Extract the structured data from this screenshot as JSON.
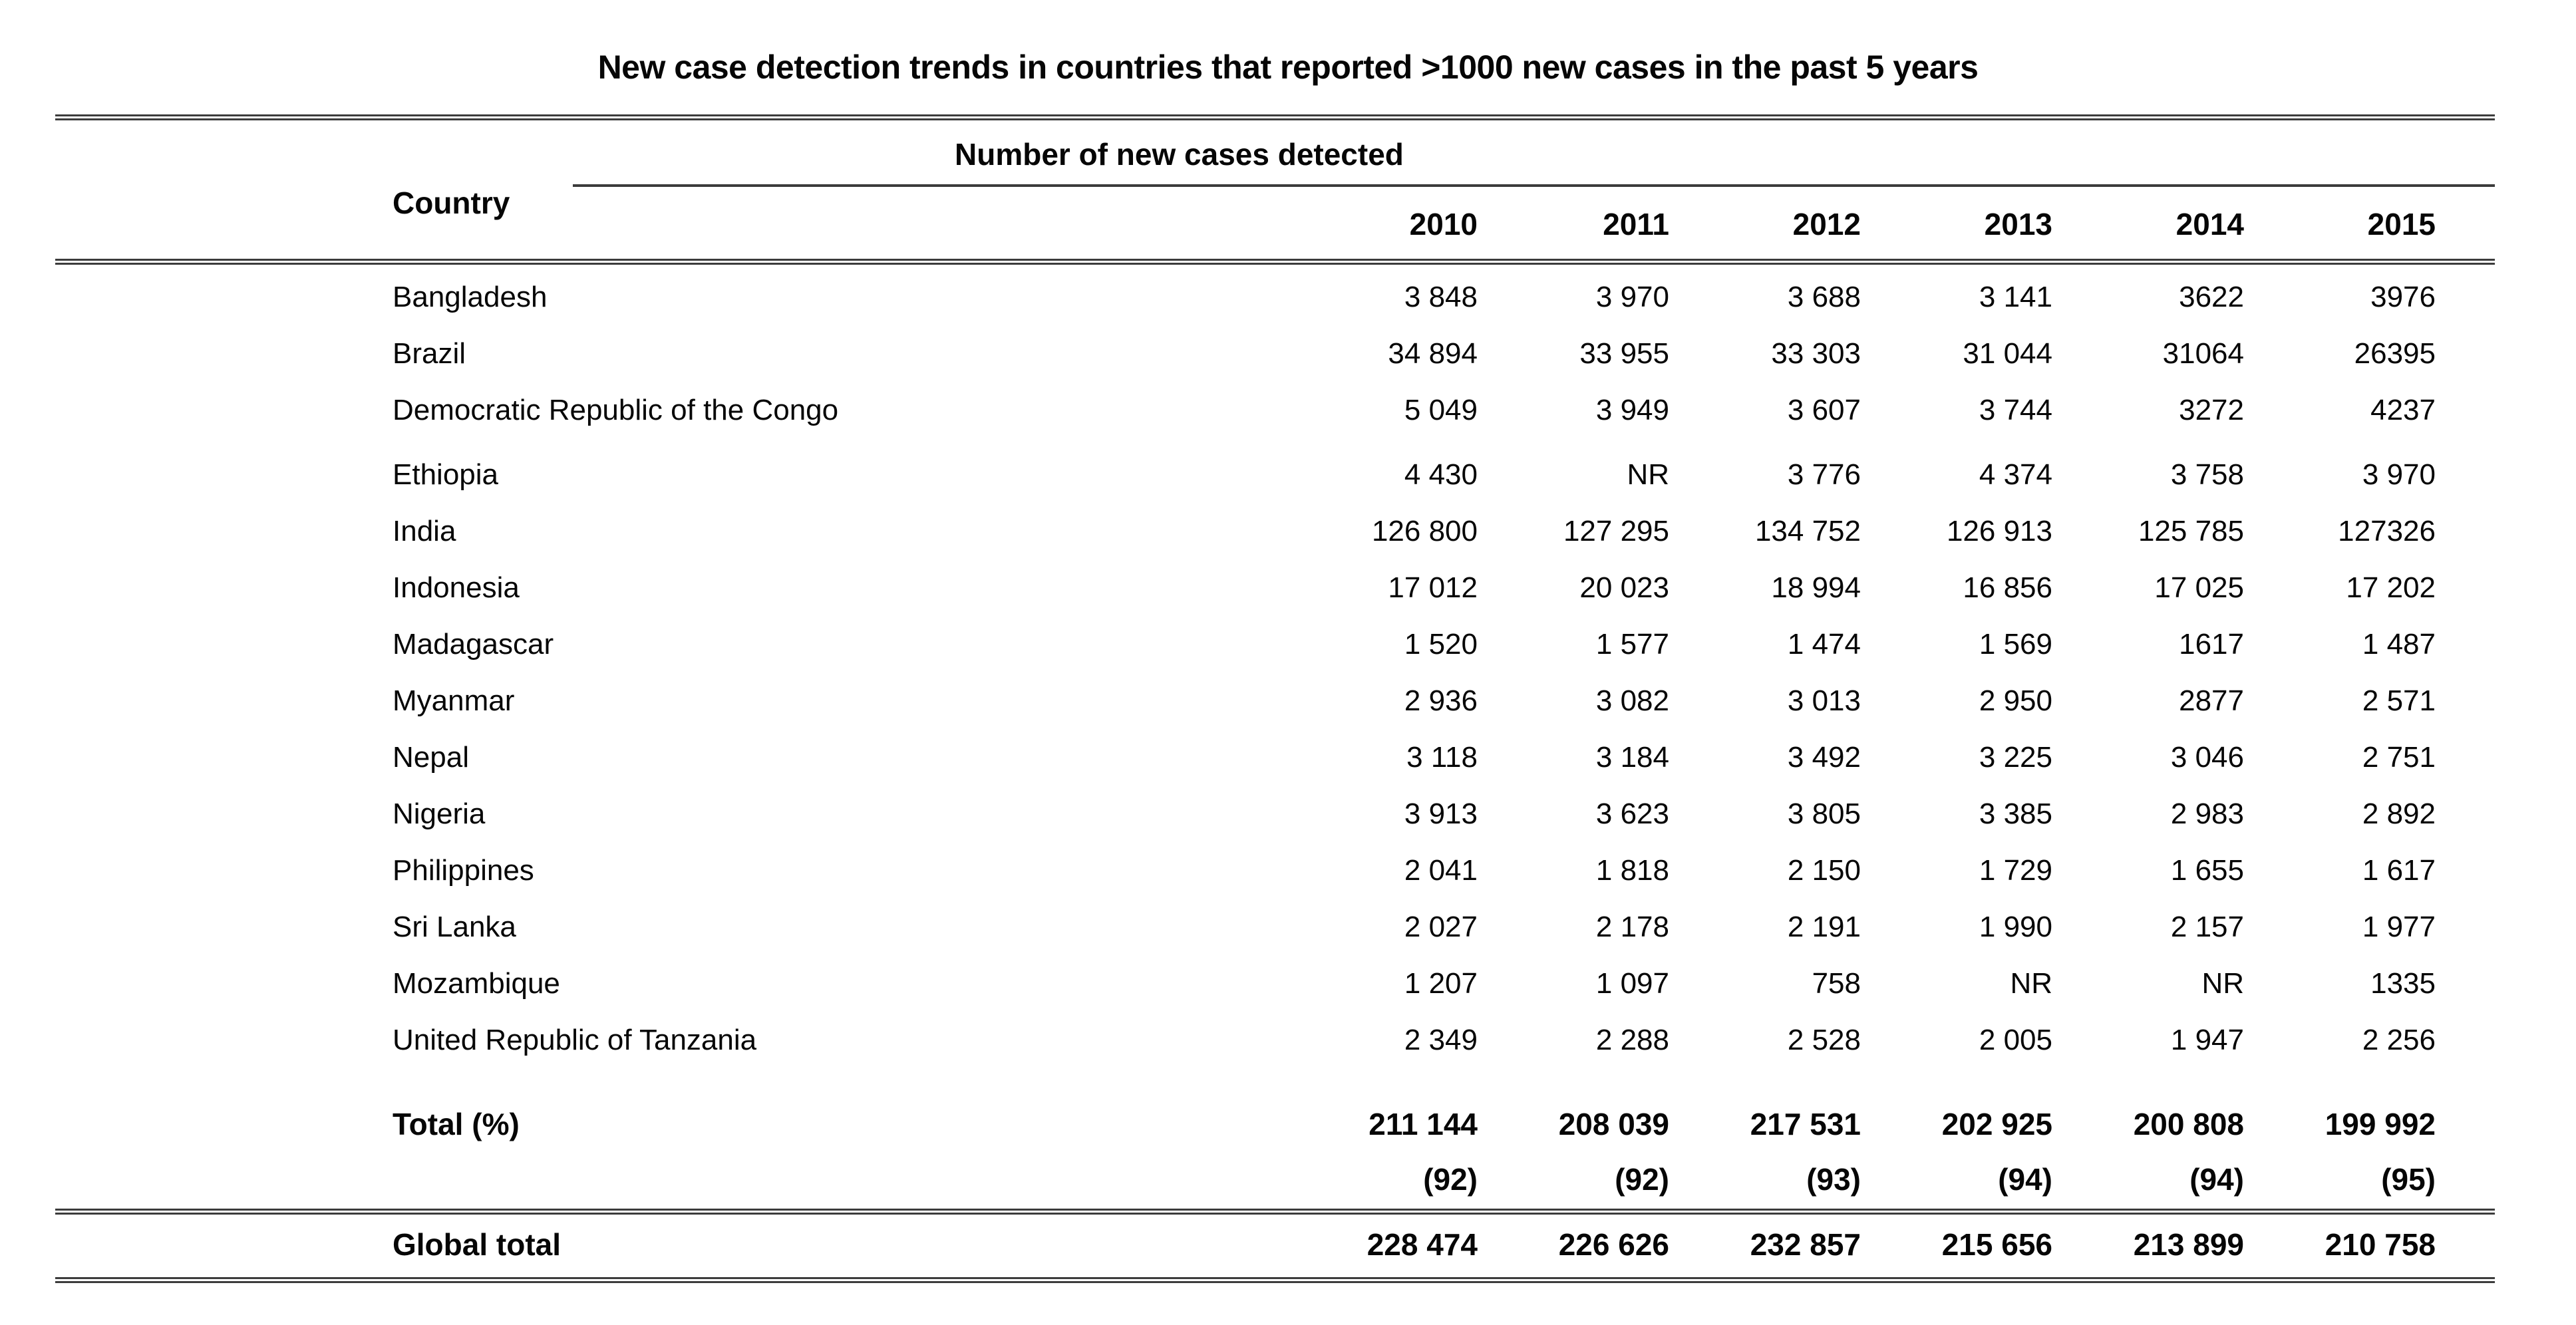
{
  "title": "New case detection trends in countries that reported >1000 new cases in the past 5 years",
  "table": {
    "country_header": "Country",
    "spanner_header": "Number of new cases detected",
    "years": [
      "2010",
      "2011",
      "2012",
      "2013",
      "2014",
      "2015"
    ],
    "rows": [
      {
        "country": "Bangladesh",
        "values": [
          "3 848",
          "3 970",
          "3 688",
          "3 141",
          "3622",
          "3976"
        ]
      },
      {
        "country": "Brazil",
        "values": [
          "34 894",
          "33 955",
          "33 303",
          "31 044",
          "31064",
          "26395"
        ]
      },
      {
        "country": "Democratic Republic of the Congo",
        "values": [
          "5 049",
          "3 949",
          "3 607",
          "3 744",
          "3272",
          "4237"
        ]
      },
      {
        "country": "Ethiopia",
        "gap_before": true,
        "values": [
          "4 430",
          "NR",
          "3 776",
          "4 374",
          "3 758",
          "3 970"
        ]
      },
      {
        "country": "India",
        "values": [
          "126 800",
          "127 295",
          "134 752",
          "126 913",
          "125 785",
          "127326"
        ]
      },
      {
        "country": "Indonesia",
        "values": [
          "17 012",
          "20 023",
          "18 994",
          "16 856",
          "17 025",
          "17 202"
        ]
      },
      {
        "country": "Madagascar",
        "values": [
          "1 520",
          "1 577",
          "1 474",
          "1 569",
          "1617",
          "1 487"
        ]
      },
      {
        "country": "Myanmar",
        "values": [
          "2 936",
          "3 082",
          "3 013",
          "2 950",
          "2877",
          "2 571"
        ]
      },
      {
        "country": "Nepal",
        "values": [
          "3 118",
          "3 184",
          "3 492",
          "3 225",
          "3 046",
          "2 751"
        ]
      },
      {
        "country": "Nigeria",
        "values": [
          "3 913",
          "3 623",
          "3 805",
          "3 385",
          "2 983",
          "2 892"
        ]
      },
      {
        "country": "Philippines",
        "values": [
          "2 041",
          "1 818",
          "2 150",
          "1 729",
          "1 655",
          "1 617"
        ]
      },
      {
        "country": "Sri Lanka",
        "values": [
          "2 027",
          "2 178",
          "2 191",
          "1 990",
          "2 157",
          "1 977"
        ]
      },
      {
        "country": "Mozambique",
        "values": [
          "1 207",
          "1 097",
          "758",
          "NR",
          "NR",
          "1335"
        ]
      },
      {
        "country": "United Republic of Tanzania",
        "values": [
          "2 349",
          "2 288",
          "2 528",
          "2 005",
          "1 947",
          "2 256"
        ]
      }
    ],
    "total_row": {
      "label": "Total (%)",
      "values": [
        "211 144",
        "208 039",
        "217 531",
        "202 925",
        "200 808",
        "199 992"
      ]
    },
    "percent_row": {
      "values": [
        "(92)",
        "(92)",
        "(93)",
        "(94)",
        "(94)",
        "(95)"
      ]
    },
    "global_row": {
      "label": "Global total",
      "values": [
        "228 474",
        "226 626",
        "232 857",
        "215 656",
        "213 899",
        "210 758"
      ]
    }
  }
}
